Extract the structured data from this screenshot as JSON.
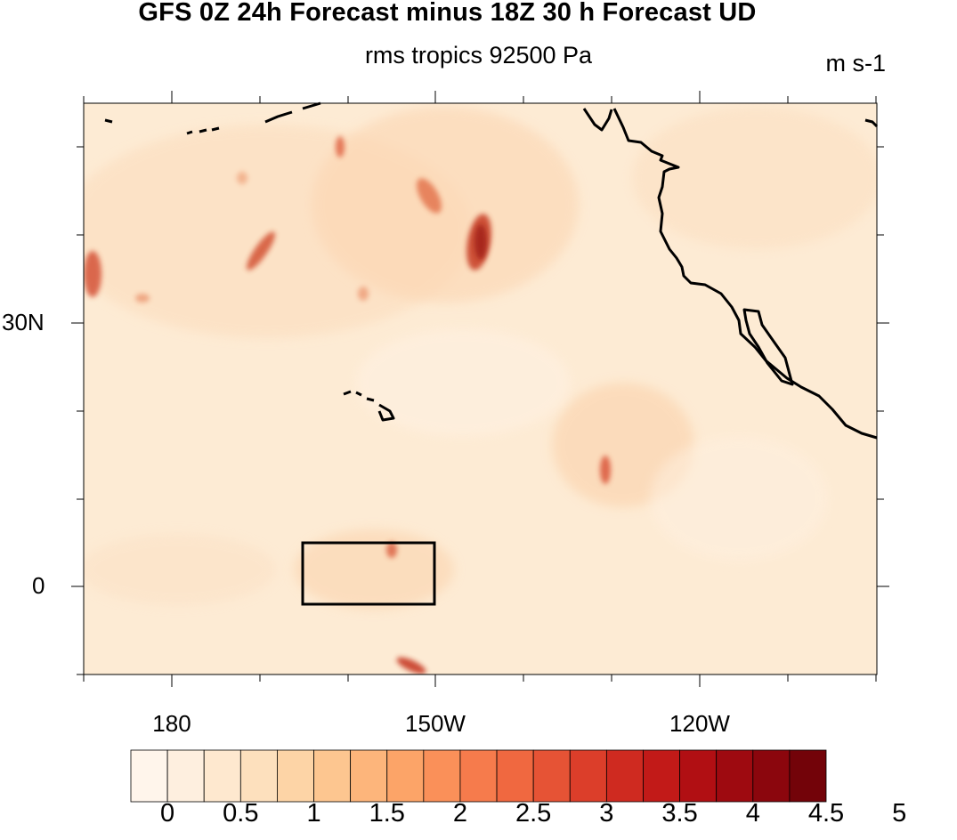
{
  "title": "GFS 0Z 24h Forecast minus 18Z 30 h Forecast UD",
  "subtitle": "rms tropics 92500 Pa",
  "units": "m s-1",
  "map": {
    "lat_labels": [
      "30N",
      "0"
    ],
    "lon_labels": [
      "180",
      "150W",
      "120W"
    ],
    "fill_color": "#fdebd4",
    "coastline_color": "#000000"
  },
  "colorbar": {
    "levels": [
      "0",
      "0.5",
      "1",
      "1.5",
      "2",
      "2.5",
      "3",
      "3.5",
      "4",
      "4.5",
      "5"
    ],
    "colors": [
      "#fff5eb",
      "#feefdf",
      "#fee8cf",
      "#fde0bd",
      "#fdd4a6",
      "#fdc690",
      "#fdb57b",
      "#fca468",
      "#fa9059",
      "#f67b4c",
      "#f06840",
      "#e65335",
      "#dc3e2a",
      "#cf2a20",
      "#c21a18",
      "#b10f13",
      "#9e0a10",
      "#8b060d",
      "#730309"
    ]
  }
}
